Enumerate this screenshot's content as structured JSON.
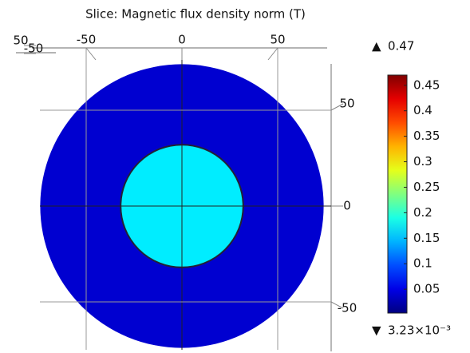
{
  "chart_data": {
    "type": "slice",
    "title": "Slice: Magnetic flux density norm (T)",
    "xlim": [
      -75,
      75
    ],
    "ylim": [
      -75,
      75
    ],
    "xticks": [
      -50,
      0,
      50
    ],
    "yticks": [
      50,
      0,
      -50
    ],
    "zticks": [
      50,
      -50
    ],
    "regions": [
      {
        "r_outer": 74,
        "value": 0.04
      },
      {
        "r_outer": 32,
        "value": 0.17
      }
    ],
    "colormap": "rainbow",
    "clim": [
      {
        "value": 0.00323,
        "label": "3.23×10⁻³"
      },
      0.47
    ],
    "cticks": [
      0.05,
      0.1,
      0.15,
      0.2,
      0.25,
      0.3,
      0.35,
      0.4,
      0.45
    ]
  }
}
